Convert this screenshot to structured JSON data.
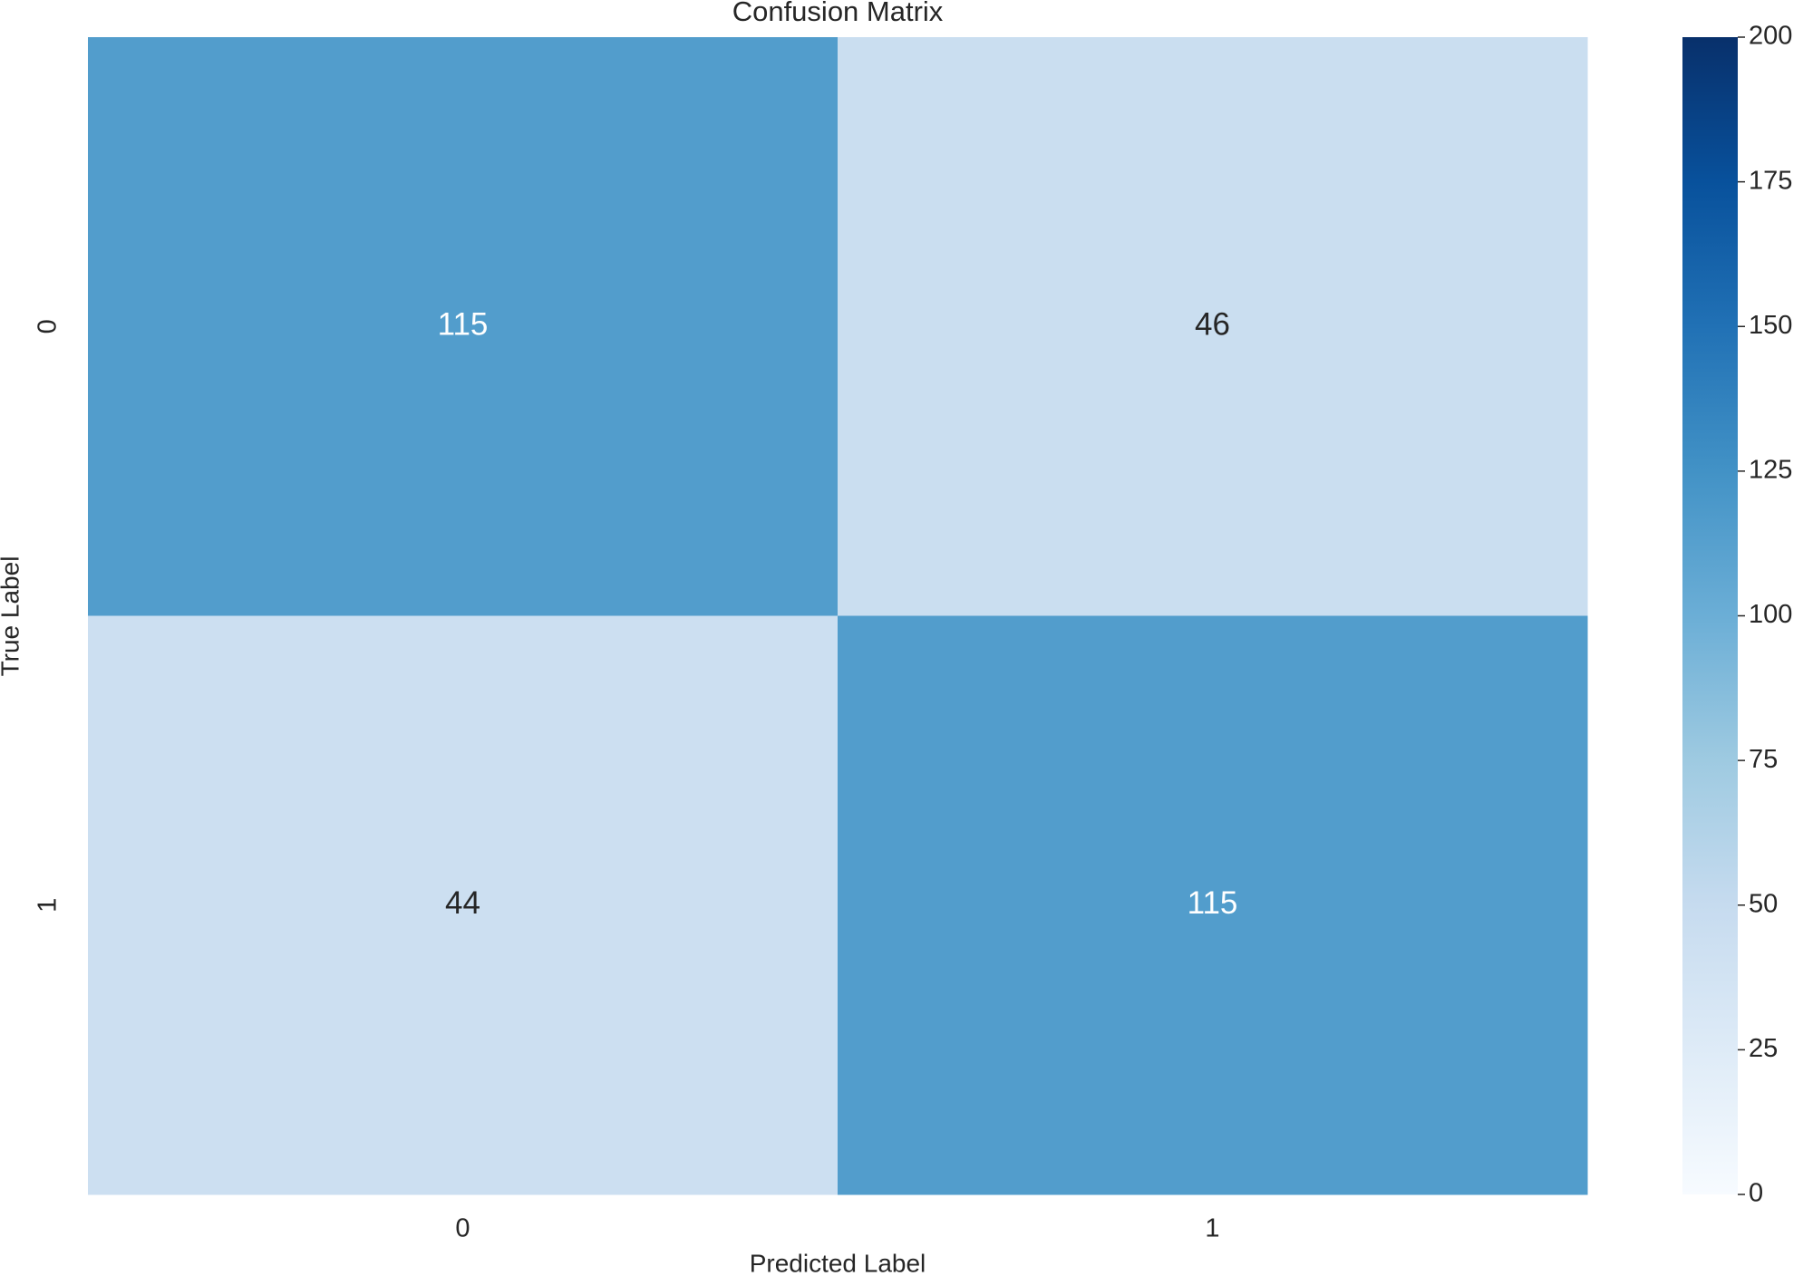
{
  "chart_data": {
    "type": "heatmap",
    "title": "Confusion Matrix",
    "xlabel": "Predicted Label",
    "ylabel": "True Label",
    "x": [
      "0",
      "1"
    ],
    "y": [
      "0",
      "1"
    ],
    "values": [
      [
        115,
        46
      ],
      [
        44,
        115
      ]
    ],
    "colormap": "Blues",
    "clim": [
      0,
      200
    ],
    "cticks": [
      0,
      25,
      50,
      75,
      100,
      125,
      150,
      175,
      200
    ]
  }
}
